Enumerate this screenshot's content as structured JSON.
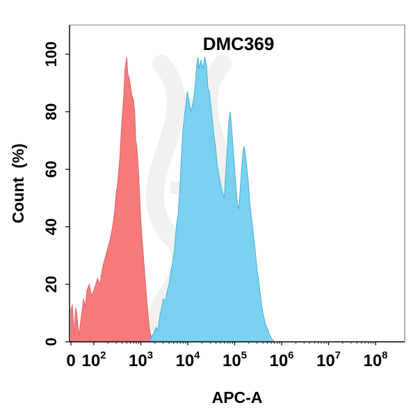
{
  "chart_data": {
    "type": "area",
    "title": "DMC369",
    "xlabel": "APC-A",
    "ylabel": "Count  (%)",
    "x_scale": "biexponential (log above 10^2)",
    "xlim": [
      0,
      100000000
    ],
    "ylim": [
      0,
      110
    ],
    "grid": false,
    "legend": "none",
    "y_ticks": [
      "0",
      "20",
      "40",
      "60",
      "80",
      "100"
    ],
    "x_ticks": [
      {
        "base": "0",
        "exp": ""
      },
      {
        "base": "10",
        "exp": "2"
      },
      {
        "base": "10",
        "exp": "3"
      },
      {
        "base": "10",
        "exp": "4"
      },
      {
        "base": "10",
        "exp": "5"
      },
      {
        "base": "10",
        "exp": "6"
      },
      {
        "base": "10",
        "exp": "7"
      },
      {
        "base": "10",
        "exp": "8"
      }
    ],
    "series": [
      {
        "color": "#f77a7a",
        "stroke": "#d96666",
        "points": [
          [
            0,
            11
          ],
          [
            6,
            13
          ],
          [
            9,
            9
          ],
          [
            11,
            7
          ],
          [
            14,
            2
          ],
          [
            20,
            12
          ],
          [
            25,
            10
          ],
          [
            35,
            2
          ],
          [
            42,
            7
          ],
          [
            55,
            15
          ],
          [
            62,
            12
          ],
          [
            70,
            18
          ],
          [
            80,
            20
          ],
          [
            90,
            16
          ],
          [
            100,
            18
          ],
          [
            120,
            22
          ],
          [
            135,
            20
          ],
          [
            150,
            25
          ],
          [
            165,
            28
          ],
          [
            180,
            30
          ],
          [
            200,
            33
          ],
          [
            225,
            36
          ],
          [
            250,
            40
          ],
          [
            275,
            45
          ],
          [
            300,
            52
          ],
          [
            320,
            55
          ],
          [
            340,
            60
          ],
          [
            360,
            65
          ],
          [
            380,
            72
          ],
          [
            400,
            78
          ],
          [
            430,
            85
          ],
          [
            460,
            95
          ],
          [
            480,
            97
          ],
          [
            500,
            99
          ],
          [
            530,
            93
          ],
          [
            560,
            92
          ],
          [
            600,
            89
          ],
          [
            640,
            86
          ],
          [
            700,
            84
          ],
          [
            740,
            80
          ],
          [
            780,
            70
          ],
          [
            820,
            68
          ],
          [
            870,
            62
          ],
          [
            920,
            55
          ],
          [
            980,
            45
          ],
          [
            1040,
            38
          ],
          [
            1100,
            33
          ],
          [
            1180,
            26
          ],
          [
            1260,
            20
          ],
          [
            1350,
            14
          ],
          [
            1450,
            8
          ],
          [
            1550,
            4
          ],
          [
            1650,
            2
          ],
          [
            1750,
            1
          ],
          [
            1850,
            0
          ],
          [
            2000,
            0
          ]
        ]
      },
      {
        "color": "#6fcdef",
        "stroke": "#4ab0d8",
        "points": [
          [
            1500,
            0
          ],
          [
            1700,
            2
          ],
          [
            1900,
            3
          ],
          [
            2100,
            5
          ],
          [
            2300,
            4
          ],
          [
            2600,
            10
          ],
          [
            2800,
            12
          ],
          [
            3000,
            15
          ],
          [
            3300,
            14
          ],
          [
            3700,
            18
          ],
          [
            4000,
            20
          ],
          [
            4400,
            25
          ],
          [
            4800,
            28
          ],
          [
            5200,
            32
          ],
          [
            5700,
            40
          ],
          [
            6200,
            44
          ],
          [
            6700,
            52
          ],
          [
            7200,
            62
          ],
          [
            7800,
            73
          ],
          [
            8400,
            78
          ],
          [
            9000,
            82
          ],
          [
            9800,
            87
          ],
          [
            10600,
            84
          ],
          [
            11500,
            80
          ],
          [
            12500,
            82
          ],
          [
            13500,
            85
          ],
          [
            14500,
            90
          ],
          [
            15500,
            96
          ],
          [
            16500,
            99
          ],
          [
            17500,
            95
          ],
          [
            19000,
            98
          ],
          [
            21000,
            95
          ],
          [
            23000,
            99
          ],
          [
            25000,
            96
          ],
          [
            27000,
            88
          ],
          [
            29000,
            87
          ],
          [
            31000,
            82
          ],
          [
            33000,
            78
          ],
          [
            36000,
            72
          ],
          [
            39000,
            68
          ],
          [
            42000,
            62
          ],
          [
            46000,
            58
          ],
          [
            50000,
            55
          ],
          [
            55000,
            52
          ],
          [
            60000,
            50
          ],
          [
            65000,
            60
          ],
          [
            70000,
            68
          ],
          [
            75000,
            77
          ],
          [
            80000,
            80
          ],
          [
            85000,
            76
          ],
          [
            90000,
            70
          ],
          [
            96000,
            64
          ],
          [
            102000,
            58
          ],
          [
            108000,
            52
          ],
          [
            115000,
            48
          ],
          [
            122000,
            46
          ],
          [
            130000,
            52
          ],
          [
            140000,
            60
          ],
          [
            150000,
            66
          ],
          [
            160000,
            68
          ],
          [
            170000,
            65
          ],
          [
            182000,
            60
          ],
          [
            196000,
            55
          ],
          [
            210000,
            48
          ],
          [
            225000,
            44
          ],
          [
            240000,
            40
          ],
          [
            260000,
            35
          ],
          [
            280000,
            30
          ],
          [
            300000,
            25
          ],
          [
            330000,
            20
          ],
          [
            360000,
            15
          ],
          [
            400000,
            10
          ],
          [
            440000,
            7
          ],
          [
            480000,
            5
          ],
          [
            520000,
            4
          ],
          [
            560000,
            2
          ],
          [
            620000,
            1
          ],
          [
            700000,
            0
          ]
        ]
      }
    ]
  }
}
